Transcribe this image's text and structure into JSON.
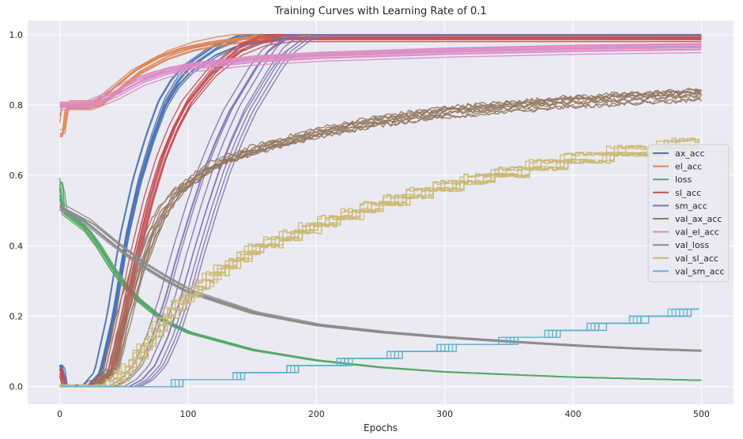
{
  "chart_data": {
    "type": "line",
    "title": "Training Curves with Learning Rate of 0.1",
    "xlabel": "Epochs",
    "ylabel": "",
    "xlim": [
      -25,
      525
    ],
    "ylim": [
      -0.05,
      1.04
    ],
    "xticks": [
      0,
      100,
      200,
      300,
      400,
      500
    ],
    "yticks": [
      0.0,
      0.2,
      0.4,
      0.6,
      0.8,
      1.0
    ],
    "grid": true,
    "background": "#eaeaf2",
    "legend": "center-right",
    "runs_per_series": 10,
    "series": [
      {
        "name": "ax_acc",
        "color": "#4c72b0",
        "points": [
          [
            0,
            0.06
          ],
          [
            2,
            0
          ],
          [
            20,
            0
          ],
          [
            30,
            0.04
          ],
          [
            40,
            0.2
          ],
          [
            50,
            0.42
          ],
          [
            60,
            0.58
          ],
          [
            70,
            0.7
          ],
          [
            80,
            0.8
          ],
          [
            90,
            0.86
          ],
          [
            100,
            0.9
          ],
          [
            120,
            0.95
          ],
          [
            140,
            0.98
          ],
          [
            160,
            0.995
          ],
          [
            180,
            1.0
          ],
          [
            500,
            1.0
          ]
        ]
      },
      {
        "name": "el_acc",
        "color": "#dd8452",
        "points": [
          [
            0,
            0.72
          ],
          [
            2,
            0.8
          ],
          [
            20,
            0.8
          ],
          [
            30,
            0.81
          ],
          [
            40,
            0.84
          ],
          [
            50,
            0.87
          ],
          [
            60,
            0.9
          ],
          [
            80,
            0.94
          ],
          [
            100,
            0.965
          ],
          [
            120,
            0.98
          ],
          [
            150,
            0.995
          ],
          [
            175,
            1.0
          ],
          [
            500,
            1.0
          ]
        ]
      },
      {
        "name": "loss",
        "color": "#55a868",
        "points": [
          [
            0,
            0.585
          ],
          [
            2,
            0.5
          ],
          [
            20,
            0.45
          ],
          [
            30,
            0.4
          ],
          [
            40,
            0.34
          ],
          [
            50,
            0.29
          ],
          [
            60,
            0.25
          ],
          [
            80,
            0.19
          ],
          [
            100,
            0.155
          ],
          [
            150,
            0.105
          ],
          [
            200,
            0.075
          ],
          [
            250,
            0.055
          ],
          [
            300,
            0.042
          ],
          [
            400,
            0.027
          ],
          [
            500,
            0.018
          ]
        ]
      },
      {
        "name": "sl_acc",
        "color": "#c44e52",
        "points": [
          [
            0,
            0.05
          ],
          [
            2,
            0
          ],
          [
            25,
            0
          ],
          [
            40,
            0.04
          ],
          [
            50,
            0.2
          ],
          [
            60,
            0.38
          ],
          [
            70,
            0.53
          ],
          [
            80,
            0.65
          ],
          [
            90,
            0.74
          ],
          [
            100,
            0.81
          ],
          [
            120,
            0.9
          ],
          [
            140,
            0.96
          ],
          [
            160,
            0.99
          ],
          [
            180,
            1.0
          ],
          [
            500,
            1.0
          ]
        ]
      },
      {
        "name": "sm_acc",
        "color": "#8172b3",
        "points": [
          [
            0,
            0.0
          ],
          [
            50,
            0
          ],
          [
            60,
            0.02
          ],
          [
            70,
            0.06
          ],
          [
            80,
            0.14
          ],
          [
            90,
            0.25
          ],
          [
            100,
            0.38
          ],
          [
            110,
            0.5
          ],
          [
            120,
            0.61
          ],
          [
            130,
            0.7
          ],
          [
            140,
            0.78
          ],
          [
            150,
            0.84
          ],
          [
            160,
            0.9
          ],
          [
            170,
            0.95
          ],
          [
            185,
            0.99
          ],
          [
            200,
            1.0
          ],
          [
            500,
            1.0
          ]
        ]
      },
      {
        "name": "val_ax_acc",
        "color": "#937860",
        "points": [
          [
            0,
            0
          ],
          [
            25,
            0
          ],
          [
            40,
            0.05
          ],
          [
            50,
            0.2
          ],
          [
            60,
            0.33
          ],
          [
            70,
            0.43
          ],
          [
            80,
            0.5
          ],
          [
            90,
            0.55
          ],
          [
            100,
            0.58
          ],
          [
            120,
            0.63
          ],
          [
            150,
            0.67
          ],
          [
            200,
            0.72
          ],
          [
            250,
            0.755
          ],
          [
            300,
            0.78
          ],
          [
            350,
            0.795
          ],
          [
            400,
            0.81
          ],
          [
            450,
            0.82
          ],
          [
            500,
            0.83
          ]
        ]
      },
      {
        "name": "val_el_acc",
        "color": "#da8bc3",
        "points": [
          [
            0,
            0.8
          ],
          [
            20,
            0.8
          ],
          [
            40,
            0.83
          ],
          [
            60,
            0.87
          ],
          [
            80,
            0.895
          ],
          [
            100,
            0.91
          ],
          [
            150,
            0.93
          ],
          [
            200,
            0.94
          ],
          [
            300,
            0.952
          ],
          [
            400,
            0.96
          ],
          [
            500,
            0.965
          ]
        ]
      },
      {
        "name": "val_loss",
        "color": "#8c8c8c",
        "points": [
          [
            0,
            0.51
          ],
          [
            20,
            0.47
          ],
          [
            40,
            0.41
          ],
          [
            60,
            0.355
          ],
          [
            80,
            0.31
          ],
          [
            100,
            0.27
          ],
          [
            150,
            0.21
          ],
          [
            200,
            0.175
          ],
          [
            250,
            0.155
          ],
          [
            300,
            0.14
          ],
          [
            350,
            0.128
          ],
          [
            400,
            0.117
          ],
          [
            450,
            0.108
          ],
          [
            500,
            0.102
          ]
        ]
      },
      {
        "name": "val_sl_acc",
        "color": "#ccb974",
        "points": [
          [
            0,
            0
          ],
          [
            35,
            0
          ],
          [
            50,
            0.04
          ],
          [
            60,
            0.09
          ],
          [
            70,
            0.14
          ],
          [
            80,
            0.19
          ],
          [
            90,
            0.23
          ],
          [
            100,
            0.26
          ],
          [
            120,
            0.32
          ],
          [
            150,
            0.39
          ],
          [
            200,
            0.46
          ],
          [
            250,
            0.52
          ],
          [
            300,
            0.57
          ],
          [
            350,
            0.61
          ],
          [
            400,
            0.645
          ],
          [
            450,
            0.67
          ],
          [
            500,
            0.695
          ]
        ]
      },
      {
        "name": "val_sm_acc",
        "color": "#64b5cd",
        "points": [
          [
            0,
            0
          ],
          [
            70,
            0
          ],
          [
            80,
            0.005
          ],
          [
            100,
            0.015
          ],
          [
            150,
            0.035
          ],
          [
            200,
            0.06
          ],
          [
            250,
            0.085
          ],
          [
            300,
            0.11
          ],
          [
            350,
            0.13
          ],
          [
            400,
            0.16
          ],
          [
            450,
            0.19
          ],
          [
            500,
            0.22
          ]
        ]
      }
    ]
  }
}
